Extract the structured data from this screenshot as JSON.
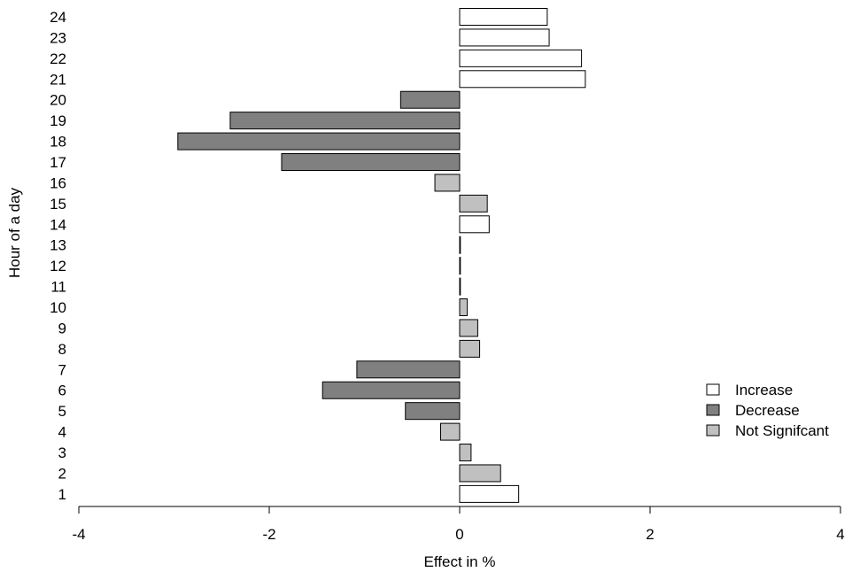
{
  "chart_data": {
    "type": "bar",
    "orientation": "horizontal",
    "xlabel": "Effect in %",
    "ylabel": "Hour of a day",
    "xlim": [
      -4,
      4
    ],
    "xticks": [
      -4,
      -2,
      0,
      2,
      4
    ],
    "xtick_labels": [
      "-4",
      "-2",
      "0",
      "2",
      "4"
    ],
    "grid": false,
    "legend_position": "bottom-right",
    "colors": {
      "Increase": "#ffffff",
      "Decrease": "#808080",
      "Not Signifcant": "#c0c0c0"
    },
    "legend": [
      "Increase",
      "Decrease",
      "Not Signifcant"
    ],
    "categories": [
      "1",
      "2",
      "3",
      "4",
      "5",
      "6",
      "7",
      "8",
      "9",
      "10",
      "11",
      "12",
      "13",
      "14",
      "15",
      "16",
      "17",
      "18",
      "19",
      "20",
      "21",
      "22",
      "23",
      "24"
    ],
    "values": [
      0.62,
      0.43,
      0.12,
      -0.2,
      -0.57,
      -1.44,
      -1.08,
      0.21,
      0.19,
      0.08,
      0.0,
      0.0,
      0.0,
      0.31,
      0.29,
      -0.26,
      -1.87,
      -2.96,
      -2.41,
      -0.62,
      1.32,
      1.28,
      0.94,
      0.92
    ],
    "classes": [
      "Increase",
      "Not Signifcant",
      "Not Signifcant",
      "Not Signifcant",
      "Decrease",
      "Decrease",
      "Decrease",
      "Not Signifcant",
      "Not Signifcant",
      "Not Signifcant",
      "Increase",
      "Increase",
      "Increase",
      "Increase",
      "Not Signifcant",
      "Not Signifcant",
      "Decrease",
      "Decrease",
      "Decrease",
      "Decrease",
      "Increase",
      "Increase",
      "Increase",
      "Increase"
    ]
  }
}
